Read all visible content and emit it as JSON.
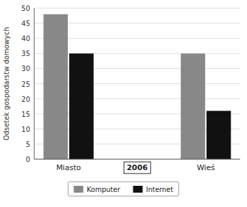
{
  "chart_data": {
    "type": "bar",
    "categories": [
      "Miasto",
      "Wieś"
    ],
    "series": [
      {
        "name": "Komputer",
        "color": "#888888",
        "values": [
          48,
          35
        ]
      },
      {
        "name": "Internet",
        "color": "#111111",
        "values": [
          35,
          16
        ]
      }
    ],
    "annotations": [
      "2006"
    ],
    "y_label": "Odsetek gospodarstw domowych",
    "ylim": [
      0,
      50
    ],
    "yticks": [
      0,
      5,
      10,
      15,
      20,
      25,
      30,
      35,
      40,
      45,
      50
    ],
    "grid": true,
    "legend": "bottom"
  }
}
